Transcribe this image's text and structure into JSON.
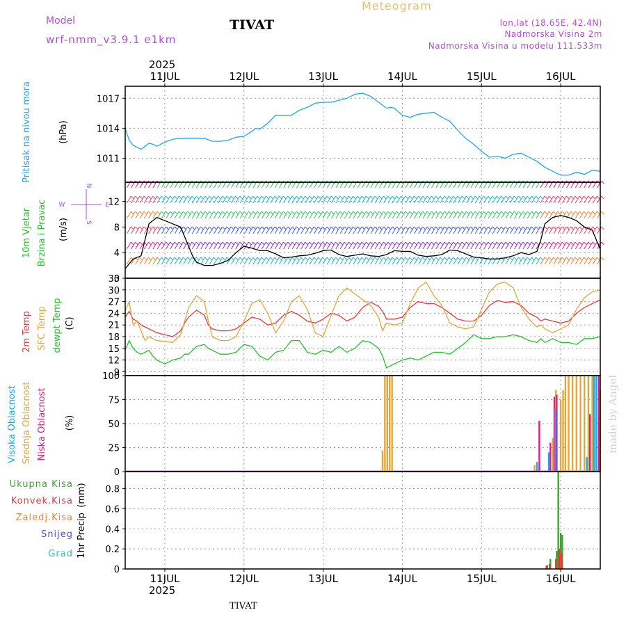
{
  "header": {
    "model_label": "Model",
    "model_name": "wrf-nmm_v3.9.1 e1km",
    "station": "TIVAT",
    "title": "Meteogram",
    "lonlat": "lon,lat (18.65E, 42.4N)",
    "altitude": "Nadmorska Visina 2m",
    "model_altitude": "Nadmorska Visina u modelu 111.533m",
    "footer_station": "TIVAT",
    "credit": "made by Angel",
    "year": "2025"
  },
  "colors": {
    "pressure": "#1ea8e6",
    "temp2m": "#e6383c",
    "sfc_temp": "#e0a73a",
    "dewpoint": "#22c42a",
    "high_cloud": "#1ea8e6",
    "mid_cloud": "#e0a73a",
    "low_cloud": "#e0208a",
    "total_precip": "#3aa62c",
    "conv_precip": "#e6383c",
    "frozen_precip": "#f08030",
    "snow": "#5050e0",
    "hail": "#28c0c0",
    "wind_speed": "#000000",
    "wind_barbs": "#30c060",
    "compass": "#a050d0"
  },
  "chart_data": [
    {
      "type": "line",
      "panel": "pressure",
      "ylabel": "Pritisak na nivou mora",
      "unit": "(hPa)",
      "yticks": [
        1011,
        1014,
        1017
      ],
      "ylim": [
        1008.6,
        1018.2
      ],
      "x_start_day": 10.5,
      "x_days": [
        10.5,
        10.55,
        10.6,
        10.7,
        10.75,
        10.8,
        10.85,
        10.9,
        11.0,
        11.1,
        11.2,
        11.3,
        11.5,
        11.6,
        11.7,
        11.8,
        11.9,
        12.0,
        12.1,
        12.15,
        12.2,
        12.3,
        12.4,
        12.5,
        12.6,
        12.7,
        12.8,
        12.9,
        13.0,
        13.1,
        13.2,
        13.3,
        13.4,
        13.5,
        13.6,
        13.7,
        13.8,
        13.85,
        13.9,
        14.0,
        14.1,
        14.2,
        14.3,
        14.4,
        14.5,
        14.6,
        14.7,
        14.8,
        14.9,
        15.0,
        15.1,
        15.2,
        15.3,
        15.4,
        15.5,
        15.6,
        15.7,
        15.8,
        15.9,
        16.0,
        16.1,
        16.2,
        16.3,
        16.4,
        16.5
      ],
      "series": [
        {
          "values": [
            1014.0,
            1012.8,
            1012.3,
            1011.9,
            1012.2,
            1012.5,
            1012.4,
            1012.2,
            1012.6,
            1012.9,
            1013.0,
            1013.0,
            1013.0,
            1012.7,
            1012.7,
            1012.8,
            1013.1,
            1013.2,
            1013.7,
            1014.0,
            1013.9,
            1014.5,
            1015.3,
            1015.3,
            1015.3,
            1015.8,
            1016.1,
            1016.5,
            1016.6,
            1016.6,
            1016.8,
            1017.0,
            1017.4,
            1017.5,
            1017.2,
            1016.6,
            1016.0,
            1016.1,
            1016.0,
            1015.3,
            1015.1,
            1015.4,
            1015.5,
            1015.6,
            1015.1,
            1014.7,
            1013.8,
            1013.0,
            1012.4,
            1011.7,
            1011.1,
            1011.2,
            1011.0,
            1011.4,
            1011.5,
            1011.1,
            1010.7,
            1010.1,
            1009.7,
            1009.3,
            1009.3,
            1009.6,
            1009.4,
            1009.8,
            1009.7
          ]
        }
      ]
    },
    {
      "type": "line",
      "panel": "wind",
      "ylabel": "10m Vjetar",
      "ylabel2": "Brzina i Pravac",
      "unit": "(m/s)",
      "yticks": [
        0,
        4,
        8,
        12
      ],
      "ylim": [
        0,
        15
      ],
      "compass": {
        "n": "N",
        "s": "S",
        "w": "W",
        "e": "E"
      },
      "x_days": [
        10.5,
        10.6,
        10.7,
        10.75,
        10.8,
        10.9,
        11.0,
        11.1,
        11.2,
        11.25,
        11.3,
        11.35,
        11.4,
        11.5,
        11.6,
        11.7,
        11.8,
        11.9,
        12.0,
        12.1,
        12.2,
        12.3,
        12.4,
        12.5,
        12.6,
        12.7,
        12.8,
        12.9,
        13.0,
        13.1,
        13.2,
        13.3,
        13.4,
        13.5,
        13.6,
        13.7,
        13.8,
        13.9,
        14.0,
        14.1,
        14.2,
        14.3,
        14.4,
        14.5,
        14.6,
        14.7,
        14.8,
        14.9,
        15.0,
        15.1,
        15.2,
        15.3,
        15.4,
        15.5,
        15.6,
        15.7,
        15.75,
        15.8,
        15.9,
        16.0,
        16.1,
        16.2,
        16.3,
        16.4,
        16.5
      ],
      "series": [
        {
          "name": "speed",
          "values": [
            1.5,
            3.0,
            3.5,
            6.0,
            8.5,
            9.5,
            9.0,
            8.5,
            8.0,
            6.5,
            5.0,
            3.5,
            2.5,
            2.0,
            2.0,
            2.3,
            2.8,
            4.0,
            5.0,
            4.7,
            4.3,
            4.3,
            3.8,
            3.2,
            3.3,
            3.5,
            3.6,
            3.9,
            4.3,
            4.4,
            3.7,
            3.4,
            3.6,
            3.8,
            3.5,
            3.4,
            3.7,
            4.3,
            4.2,
            4.2,
            3.6,
            3.4,
            3.5,
            3.7,
            4.4,
            4.3,
            3.8,
            3.3,
            3.2,
            3.0,
            3.0,
            3.2,
            3.5,
            4.0,
            3.7,
            4.2,
            6.0,
            8.5,
            9.5,
            9.8,
            9.5,
            9.0,
            8.0,
            7.5,
            4.5
          ]
        }
      ]
    },
    {
      "type": "line",
      "panel": "temperature",
      "ylabel_temp": "2m Temp",
      "ylabel_sfc": "SFC Temp",
      "ylabel_dew": "dewpt Temp",
      "unit": "(C)",
      "yticks": [
        9,
        12,
        15,
        18,
        21,
        24,
        27,
        30,
        33
      ],
      "ylim": [
        8,
        33
      ],
      "x_days": [
        10.5,
        10.55,
        10.6,
        10.65,
        10.7,
        10.75,
        10.8,
        10.85,
        10.9,
        11.0,
        11.1,
        11.2,
        11.25,
        11.3,
        11.4,
        11.5,
        11.55,
        11.6,
        11.7,
        11.8,
        11.9,
        12.0,
        12.1,
        12.2,
        12.3,
        12.4,
        12.5,
        12.6,
        12.7,
        12.8,
        12.9,
        13.0,
        13.1,
        13.2,
        13.3,
        13.4,
        13.5,
        13.6,
        13.7,
        13.75,
        13.8,
        13.9,
        14.0,
        14.1,
        14.2,
        14.3,
        14.4,
        14.5,
        14.6,
        14.7,
        14.8,
        14.9,
        15.0,
        15.1,
        15.2,
        15.3,
        15.4,
        15.5,
        15.6,
        15.7,
        15.75,
        15.8,
        15.9,
        16.0,
        16.1,
        16.2,
        16.3,
        16.4,
        16.5
      ],
      "series": [
        {
          "name": "2m Temp",
          "values": [
            23.0,
            24.5,
            22.5,
            22.0,
            21.0,
            20.5,
            20.0,
            19.5,
            19.0,
            18.5,
            18.0,
            19.5,
            21.5,
            23.0,
            24.8,
            23.5,
            21.0,
            20.0,
            19.5,
            19.5,
            20.0,
            21.5,
            23.0,
            22.5,
            21.0,
            21.5,
            23.5,
            24.5,
            23.5,
            22.0,
            21.5,
            22.5,
            24.0,
            23.5,
            22.0,
            23.0,
            25.5,
            26.8,
            25.8,
            24.5,
            22.5,
            22.5,
            23.0,
            25.5,
            27.0,
            26.5,
            26.5,
            25.5,
            24.0,
            22.5,
            22.0,
            22.0,
            23.5,
            26.0,
            27.3,
            26.8,
            27.0,
            26.0,
            24.0,
            23.0,
            22.0,
            22.5,
            22.0,
            21.5,
            22.0,
            24.0,
            25.5,
            26.5,
            27.5
          ]
        },
        {
          "name": "SFC Temp",
          "values": [
            24.5,
            27.0,
            21.0,
            22.0,
            19.5,
            17.0,
            18.0,
            17.5,
            17.0,
            16.8,
            16.5,
            18.5,
            22.0,
            25.5,
            28.5,
            27.0,
            22.0,
            18.0,
            17.0,
            17.0,
            18.0,
            22.0,
            26.5,
            27.5,
            24.0,
            19.0,
            22.0,
            27.0,
            28.5,
            25.0,
            19.0,
            18.0,
            23.5,
            28.5,
            30.5,
            29.0,
            27.5,
            26.0,
            23.0,
            19.5,
            21.5,
            21.0,
            21.5,
            26.5,
            30.5,
            32.0,
            28.5,
            26.0,
            21.5,
            20.5,
            20.0,
            20.5,
            25.0,
            29.5,
            31.5,
            32.0,
            30.5,
            25.5,
            22.5,
            20.5,
            21.0,
            20.0,
            19.0,
            20.0,
            21.0,
            25.0,
            28.0,
            29.5,
            30.0
          ]
        },
        {
          "name": "dewpt Temp",
          "values": [
            14.5,
            17.0,
            15.0,
            14.0,
            13.5,
            14.0,
            14.5,
            13.0,
            12.0,
            11.0,
            12.0,
            12.5,
            13.5,
            13.5,
            15.5,
            16.0,
            15.0,
            14.5,
            13.5,
            13.5,
            14.0,
            16.0,
            15.5,
            13.0,
            12.0,
            14.0,
            14.5,
            17.0,
            17.0,
            14.0,
            13.5,
            14.5,
            14.0,
            15.5,
            14.0,
            15.0,
            17.0,
            16.5,
            15.0,
            13.0,
            10.0,
            11.0,
            12.0,
            12.5,
            12.0,
            13.0,
            14.0,
            14.0,
            13.5,
            15.0,
            16.5,
            18.5,
            17.5,
            17.5,
            18.0,
            18.0,
            18.5,
            18.0,
            17.0,
            16.5,
            17.5,
            16.5,
            17.5,
            16.5,
            16.5,
            16.0,
            17.5,
            17.5,
            18.0
          ]
        }
      ]
    },
    {
      "type": "bar",
      "panel": "cloud",
      "ylabel_high": "Visoka Oblacnost",
      "ylabel_mid": "Srednja Oblacnost",
      "ylabel_low": "Niska Oblacnost",
      "unit": "(%)",
      "yticks": [
        0,
        25,
        50,
        75,
        100
      ],
      "ylim": [
        0,
        100
      ],
      "series": [
        {
          "name": "Srednja Oblacnost",
          "x_days": [
            13.75,
            13.78,
            13.81,
            13.84,
            13.87,
            15.67,
            15.9,
            15.94,
            16.0,
            16.03,
            16.06,
            16.1,
            16.15,
            16.2,
            16.25,
            16.3,
            16.35,
            16.4,
            16.45,
            16.5
          ],
          "values": [
            22,
            100,
            100,
            100,
            100,
            7,
            35,
            85,
            75,
            85,
            100,
            100,
            100,
            100,
            100,
            100,
            100,
            100,
            55,
            85
          ]
        },
        {
          "name": "Niska Oblacnost",
          "x_days": [
            15.73,
            15.87,
            15.92,
            15.95,
            16.37,
            16.48
          ],
          "values": [
            53,
            30,
            78,
            80,
            60,
            100
          ]
        },
        {
          "name": "Visoka Oblacnost",
          "x_days": [
            15.7,
            15.85,
            15.93,
            16.33,
            16.42,
            16.45
          ],
          "values": [
            10,
            20,
            65,
            15,
            100,
            100
          ]
        }
      ]
    },
    {
      "type": "bar",
      "panel": "precip",
      "ylabel": "1hr Precip",
      "unit": "(mm)",
      "legend": [
        "Ukupna Kisa",
        "Konvek.Kisa",
        "Zaledj.Kisa",
        "Snijeg",
        "Grad"
      ],
      "yticks": [
        0,
        0.2,
        0.4,
        0.6,
        0.8
      ],
      "ylim": [
        0,
        0.97
      ],
      "series": [
        {
          "name": "Ukupna Kisa",
          "x_days": [
            15.83,
            15.87,
            15.95,
            15.97,
            16.0,
            16.02
          ],
          "values": [
            0.04,
            0.1,
            0.18,
            0.97,
            0.36,
            0.34
          ]
        },
        {
          "name": "Konvek.Kisa",
          "x_days": [
            15.82,
            15.86,
            15.94,
            15.98,
            16.01
          ],
          "values": [
            0.03,
            0.05,
            0.1,
            0.2,
            0.15
          ]
        }
      ]
    },
    {
      "type": "axis",
      "panel": "time",
      "x_ticks": [
        "11JUL",
        "12JUL",
        "13JUL",
        "14JUL",
        "15JUL",
        "16JUL"
      ],
      "x_tick_days": [
        11,
        12,
        13,
        14,
        15,
        16
      ],
      "xlim_days": [
        10.5,
        16.5
      ]
    }
  ]
}
